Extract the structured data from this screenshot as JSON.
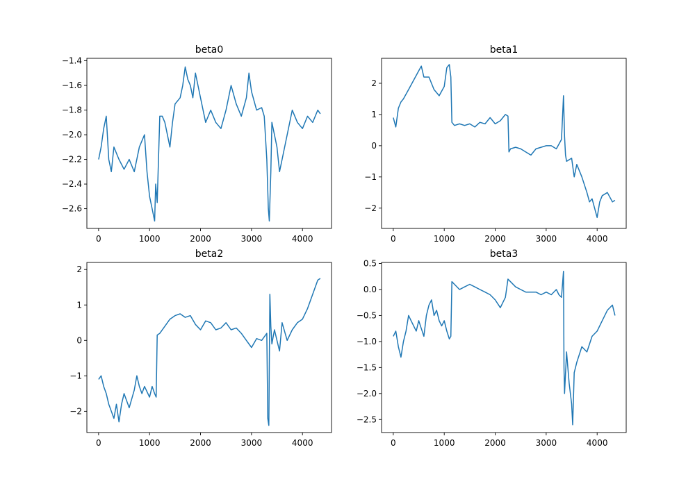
{
  "chart_data": [
    {
      "type": "line",
      "title": "beta0",
      "xlabel": "",
      "ylabel": "",
      "xlim": [
        -230,
        4570
      ],
      "ylim": [
        -2.76,
        -1.38
      ],
      "xticks": [
        0,
        1000,
        2000,
        3000,
        4000
      ],
      "yticks": [
        -2.6,
        -2.4,
        -2.2,
        -2.0,
        -1.8,
        -1.6,
        -1.4
      ],
      "ytick_labels": [
        "−2.6",
        "−2.4",
        "−2.2",
        "−2.0",
        "−1.8",
        "−1.6",
        "−1.4"
      ],
      "grid": false,
      "color": "#1f77b4",
      "x": [
        0,
        50,
        100,
        150,
        200,
        250,
        300,
        400,
        500,
        600,
        700,
        800,
        900,
        950,
        1000,
        1050,
        1100,
        1120,
        1150,
        1200,
        1250,
        1300,
        1400,
        1450,
        1500,
        1600,
        1650,
        1700,
        1750,
        1800,
        1850,
        1900,
        2000,
        2050,
        2100,
        2200,
        2300,
        2400,
        2500,
        2600,
        2700,
        2800,
        2900,
        2950,
        3000,
        3100,
        3200,
        3250,
        3300,
        3330,
        3350,
        3380,
        3400,
        3450,
        3500,
        3550,
        3600,
        3700,
        3800,
        3900,
        4000,
        4100,
        4200,
        4300,
        4350
      ],
      "y": [
        -2.2,
        -2.1,
        -1.95,
        -1.85,
        -2.2,
        -2.3,
        -2.1,
        -2.2,
        -2.28,
        -2.2,
        -2.3,
        -2.1,
        -2.0,
        -2.3,
        -2.5,
        -2.6,
        -2.7,
        -2.4,
        -2.55,
        -1.85,
        -1.85,
        -1.9,
        -2.1,
        -1.9,
        -1.75,
        -1.7,
        -1.6,
        -1.45,
        -1.55,
        -1.6,
        -1.7,
        -1.5,
        -1.7,
        -1.8,
        -1.9,
        -1.8,
        -1.9,
        -1.95,
        -1.8,
        -1.6,
        -1.75,
        -1.85,
        -1.7,
        -1.5,
        -1.65,
        -1.8,
        -1.78,
        -1.85,
        -2.2,
        -2.6,
        -2.7,
        -2.3,
        -1.9,
        -2.0,
        -2.1,
        -2.3,
        -2.2,
        -2.0,
        -1.8,
        -1.9,
        -1.95,
        -1.85,
        -1.9,
        -1.8,
        -1.83
      ]
    },
    {
      "type": "line",
      "title": "beta1",
      "xlabel": "",
      "ylabel": "",
      "xlim": [
        -230,
        4570
      ],
      "ylim": [
        -2.65,
        2.8
      ],
      "xticks": [
        0,
        1000,
        2000,
        3000,
        4000
      ],
      "yticks": [
        -2,
        -1,
        0,
        1,
        2
      ],
      "ytick_labels": [
        "−2",
        "−1",
        "0",
        "1",
        "2"
      ],
      "grid": false,
      "color": "#1f77b4",
      "x": [
        0,
        50,
        100,
        150,
        200,
        300,
        400,
        500,
        550,
        600,
        700,
        800,
        900,
        1000,
        1050,
        1100,
        1130,
        1150,
        1200,
        1300,
        1400,
        1500,
        1600,
        1700,
        1800,
        1900,
        2000,
        2100,
        2200,
        2250,
        2270,
        2300,
        2400,
        2500,
        2600,
        2700,
        2800,
        2900,
        3000,
        3100,
        3200,
        3300,
        3340,
        3360,
        3380,
        3400,
        3500,
        3550,
        3600,
        3700,
        3800,
        3850,
        3900,
        4000,
        4050,
        4100,
        4200,
        4300,
        4350
      ],
      "y": [
        0.9,
        0.6,
        1.2,
        1.4,
        1.5,
        1.8,
        2.1,
        2.4,
        2.55,
        2.2,
        2.2,
        1.8,
        1.6,
        1.9,
        2.5,
        2.6,
        2.2,
        0.75,
        0.65,
        0.7,
        0.65,
        0.7,
        0.6,
        0.75,
        0.7,
        0.9,
        0.7,
        0.8,
        1.0,
        0.95,
        -0.2,
        -0.1,
        -0.05,
        -0.1,
        -0.2,
        -0.3,
        -0.1,
        -0.05,
        0.0,
        0.0,
        -0.1,
        0.2,
        1.6,
        0.3,
        -0.3,
        -0.5,
        -0.4,
        -1.0,
        -0.6,
        -1.0,
        -1.5,
        -1.8,
        -1.7,
        -2.3,
        -1.8,
        -1.6,
        -1.5,
        -1.8,
        -1.75
      ]
    },
    {
      "type": "line",
      "title": "beta2",
      "xlabel": "",
      "ylabel": "",
      "xlim": [
        -230,
        4570
      ],
      "ylim": [
        -2.6,
        2.2
      ],
      "xticks": [
        0,
        1000,
        2000,
        3000,
        4000
      ],
      "yticks": [
        -2,
        -1,
        0,
        1,
        2
      ],
      "ytick_labels": [
        "−2",
        "−1",
        "0",
        "1",
        "2"
      ],
      "grid": false,
      "color": "#1f77b4",
      "x": [
        0,
        50,
        100,
        150,
        200,
        250,
        300,
        350,
        400,
        450,
        500,
        550,
        600,
        700,
        750,
        800,
        850,
        900,
        1000,
        1050,
        1100,
        1130,
        1150,
        1200,
        1300,
        1400,
        1500,
        1600,
        1700,
        1800,
        1900,
        2000,
        2100,
        2200,
        2300,
        2400,
        2500,
        2600,
        2700,
        2800,
        2900,
        3000,
        3100,
        3200,
        3250,
        3300,
        3320,
        3340,
        3360,
        3380,
        3400,
        3450,
        3500,
        3550,
        3600,
        3700,
        3800,
        3900,
        4000,
        4100,
        4200,
        4300,
        4350
      ],
      "y": [
        -1.1,
        -1.0,
        -1.3,
        -1.5,
        -1.8,
        -2.0,
        -2.2,
        -1.8,
        -2.3,
        -1.8,
        -1.5,
        -1.7,
        -1.9,
        -1.4,
        -1.0,
        -1.3,
        -1.5,
        -1.3,
        -1.6,
        -1.3,
        -1.5,
        -1.6,
        0.15,
        0.2,
        0.4,
        0.6,
        0.7,
        0.75,
        0.65,
        0.7,
        0.45,
        0.3,
        0.55,
        0.5,
        0.3,
        0.35,
        0.5,
        0.3,
        0.35,
        0.2,
        0.0,
        -0.2,
        0.05,
        0.0,
        0.1,
        0.2,
        -2.2,
        -2.4,
        1.3,
        0.4,
        -0.1,
        0.3,
        0.0,
        -0.3,
        0.5,
        0.0,
        0.3,
        0.5,
        0.6,
        0.9,
        1.3,
        1.7,
        1.75
      ]
    },
    {
      "type": "line",
      "title": "beta3",
      "xlabel": "",
      "ylabel": "",
      "xlim": [
        -230,
        4570
      ],
      "ylim": [
        -2.75,
        0.52
      ],
      "xticks": [
        0,
        1000,
        2000,
        3000,
        4000
      ],
      "yticks": [
        -2.5,
        -2.0,
        -1.5,
        -1.0,
        -0.5,
        0.0,
        0.5
      ],
      "ytick_labels": [
        "−2.5",
        "−2.0",
        "−1.5",
        "−1.0",
        "−0.5",
        "0.0",
        "0.5"
      ],
      "grid": false,
      "color": "#1f77b4",
      "x": [
        0,
        50,
        100,
        150,
        200,
        250,
        300,
        350,
        400,
        450,
        500,
        550,
        600,
        650,
        700,
        750,
        800,
        850,
        900,
        950,
        1000,
        1050,
        1100,
        1130,
        1150,
        1200,
        1300,
        1400,
        1500,
        1600,
        1700,
        1800,
        1900,
        2000,
        2100,
        2200,
        2250,
        2300,
        2400,
        2500,
        2600,
        2700,
        2800,
        2900,
        3000,
        3100,
        3200,
        3250,
        3300,
        3340,
        3350,
        3360,
        3400,
        3450,
        3500,
        3520,
        3550,
        3600,
        3700,
        3800,
        3900,
        4000,
        4100,
        4200,
        4300,
        4350
      ],
      "y": [
        -0.9,
        -0.8,
        -1.1,
        -1.3,
        -1.0,
        -0.8,
        -0.5,
        -0.6,
        -0.7,
        -0.8,
        -0.6,
        -0.75,
        -0.9,
        -0.5,
        -0.3,
        -0.2,
        -0.5,
        -0.4,
        -0.6,
        -0.7,
        -0.6,
        -0.8,
        -0.95,
        -0.9,
        0.15,
        0.1,
        0.0,
        0.05,
        0.1,
        0.05,
        0.0,
        -0.05,
        -0.1,
        -0.2,
        -0.35,
        -0.15,
        0.2,
        0.15,
        0.05,
        0.0,
        -0.05,
        -0.05,
        -0.05,
        -0.1,
        -0.05,
        -0.1,
        0.0,
        -0.1,
        -0.15,
        0.35,
        -1.5,
        -2.0,
        -1.2,
        -1.8,
        -2.2,
        -2.6,
        -1.6,
        -1.4,
        -1.1,
        -1.2,
        -0.9,
        -0.8,
        -0.6,
        -0.4,
        -0.3,
        -0.5
      ]
    }
  ]
}
